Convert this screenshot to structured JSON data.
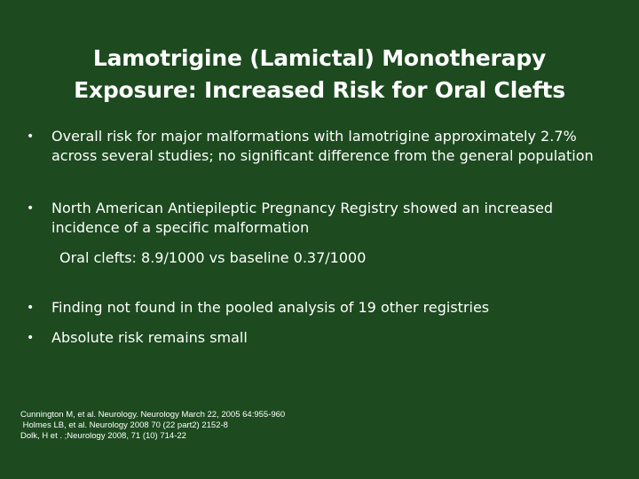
{
  "slide": {
    "title_line1": "Lamotrigine (Lamictal) Monotherapy",
    "title_line2": "Exposure: Increased Risk for Oral Clefts",
    "bullet_char": "•",
    "bullets": [
      "Overall risk for major malformations with lamotrigine approximately 2.7% across several studies; no significant difference from the general population",
      "North American Antiepileptic Pregnancy Registry showed an increased incidence of a specific malformation",
      "Finding not found in the pooled analysis of  19 other registries",
      "Absolute risk remains small"
    ],
    "sub_point": "Oral clefts: 8.9/1000 vs baseline 0.37/1000",
    "references": [
      "Cunnington M, et al. Neurology. Neurology March 22, 2005 64:955-960",
      " Holmes LB, et al. Neurology 2008 70 (22 part2) 2152-8",
      "Dolk, H et . ;Neurology 2008, 71 (10) 714-22"
    ],
    "colors": {
      "background": "#1d4a1f",
      "text": "#ffffff"
    }
  }
}
